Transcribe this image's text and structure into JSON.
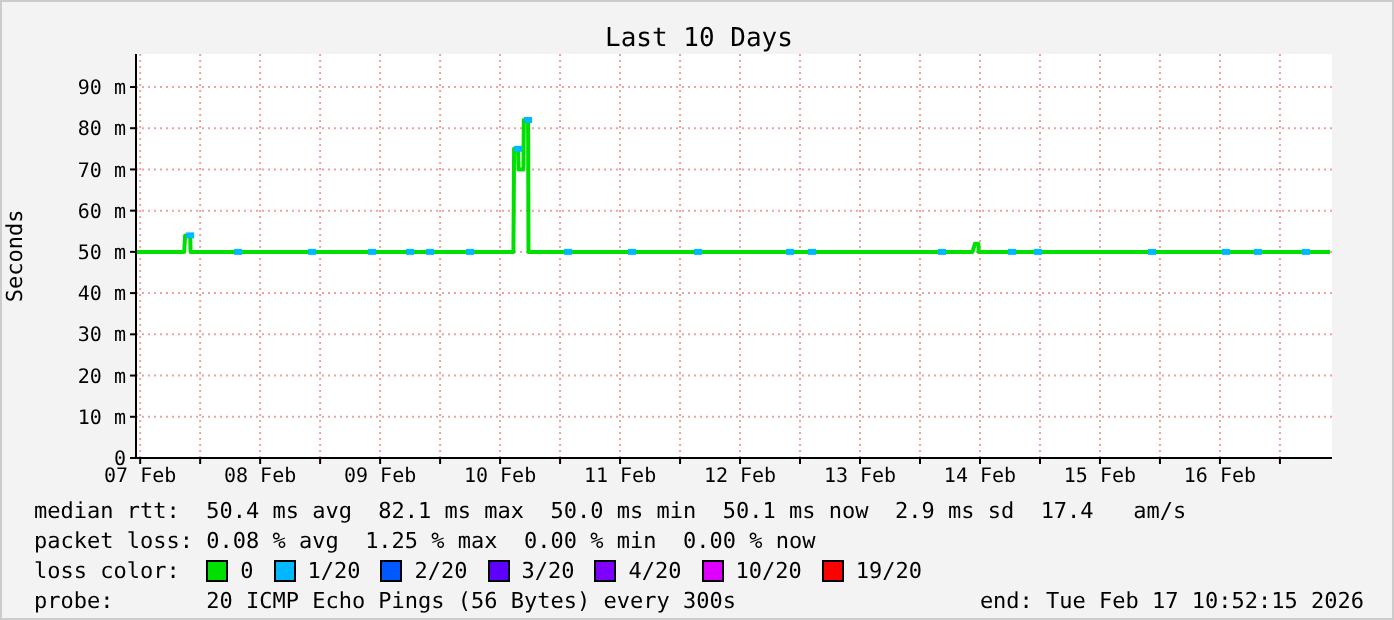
{
  "chart_data": {
    "type": "line",
    "title": "Last 10 Days",
    "ylabel": "Seconds",
    "xlim": [
      "2026-02-07T11:10",
      "2026-02-17T10:25"
    ],
    "xticks": [
      {
        "value": "2026-02-07T12:00",
        "label": "07 Feb"
      },
      {
        "value": "2026-02-08T00:00",
        "label": null
      },
      {
        "value": "2026-02-08T12:00",
        "label": "08 Feb"
      },
      {
        "value": "2026-02-09T00:00",
        "label": null
      },
      {
        "value": "2026-02-09T12:00",
        "label": "09 Feb"
      },
      {
        "value": "2026-02-10T00:00",
        "label": null
      },
      {
        "value": "2026-02-10T12:00",
        "label": "10 Feb"
      },
      {
        "value": "2026-02-11T00:00",
        "label": null
      },
      {
        "value": "2026-02-11T12:00",
        "label": "11 Feb"
      },
      {
        "value": "2026-02-12T00:00",
        "label": null
      },
      {
        "value": "2026-02-12T12:00",
        "label": "12 Feb"
      },
      {
        "value": "2026-02-13T00:00",
        "label": null
      },
      {
        "value": "2026-02-13T12:00",
        "label": "13 Feb"
      },
      {
        "value": "2026-02-14T00:00",
        "label": null
      },
      {
        "value": "2026-02-14T12:00",
        "label": "14 Feb"
      },
      {
        "value": "2026-02-15T00:00",
        "label": null
      },
      {
        "value": "2026-02-15T12:00",
        "label": "15 Feb"
      },
      {
        "value": "2026-02-16T00:00",
        "label": null
      },
      {
        "value": "2026-02-16T12:00",
        "label": "16 Feb"
      },
      {
        "value": "2026-02-17T00:00",
        "label": null
      }
    ],
    "ylim": [
      0,
      98
    ],
    "yticks": [
      0,
      {
        "value": 10,
        "label": "10 m"
      },
      {
        "value": 20,
        "label": "20 m"
      },
      {
        "value": 30,
        "label": "30 m"
      },
      {
        "value": 40,
        "label": "40 m"
      },
      {
        "value": 50,
        "label": "50 m"
      },
      {
        "value": 60,
        "label": "60 m"
      },
      {
        "value": 70,
        "label": "70 m"
      },
      {
        "value": 80,
        "label": "80 m"
      },
      {
        "value": 90,
        "label": "90 m"
      }
    ],
    "grid": true,
    "legend": "bottom",
    "legend_title": "loss color:",
    "series": [
      {
        "name": "0",
        "color": "#00e000",
        "x": [
          "2026-02-07T11:10",
          "2026-02-07T20:48",
          "2026-02-07T21:00",
          "2026-02-07T22:00",
          "2026-02-07T22:05",
          "2026-02-10T14:40",
          "2026-02-10T14:48",
          "2026-02-10T15:36",
          "2026-02-10T15:41",
          "2026-02-10T16:40",
          "2026-02-10T16:45",
          "2026-02-10T17:36",
          "2026-02-10T17:41",
          "2026-02-14T10:30",
          "2026-02-14T11:00",
          "2026-02-14T11:40",
          "2026-02-14T11:45",
          "2026-02-17T10:00"
        ],
        "values": [
          50,
          50,
          54,
          54,
          50,
          50,
          75,
          75,
          70,
          70,
          82,
          82,
          50,
          50,
          52,
          52,
          50,
          50
        ]
      },
      {
        "name": "1/20",
        "type": "scatter",
        "marker": "square",
        "color": "#00b8ff",
        "x": [
          "2026-02-07T22:00",
          "2026-02-08T07:36",
          "2026-02-08T22:24",
          "2026-02-09T10:24",
          "2026-02-09T18:00",
          "2026-02-09T22:00",
          "2026-02-10T06:00",
          "2026-02-10T15:36",
          "2026-02-10T17:36",
          "2026-02-11T01:36",
          "2026-02-11T14:24",
          "2026-02-12T03:36",
          "2026-02-12T22:00",
          "2026-02-13T02:24",
          "2026-02-14T04:24",
          "2026-02-14T18:24",
          "2026-02-14T23:36",
          "2026-02-15T22:24",
          "2026-02-16T13:12",
          "2026-02-16T19:36",
          "2026-02-17T05:12"
        ],
        "values": [
          54,
          50,
          50,
          50,
          50,
          50,
          50,
          75,
          82,
          50,
          50,
          50,
          50,
          50,
          50,
          50,
          50,
          50,
          50,
          50,
          50
        ]
      },
      {
        "name": "2/20",
        "type": "scatter",
        "marker": "square",
        "color": "#0059ff"
      },
      {
        "name": "3/20",
        "type": "scatter",
        "marker": "square",
        "color": "#5e00ff"
      },
      {
        "name": "4/20",
        "type": "scatter",
        "marker": "square",
        "color": "#7e00ff"
      },
      {
        "name": "10/20",
        "type": "scatter",
        "marker": "square",
        "color": "#dd00ff"
      },
      {
        "name": "19/20",
        "type": "scatter",
        "marker": "square",
        "color": "#ff0000"
      }
    ],
    "annotations": [
      "median rtt:  50.4 ms avg  82.1 ms max  50.0 ms min  50.1 ms now  2.9 ms sd  17.4   am/s",
      "packet loss: 0.08 % avg  1.25 % max  0.00 % min  0.00 % now",
      "probe:       20 ICMP Echo Pings (56 Bytes) every 300s",
      "end: Tue Feb 17 10:52:15 2026"
    ]
  }
}
